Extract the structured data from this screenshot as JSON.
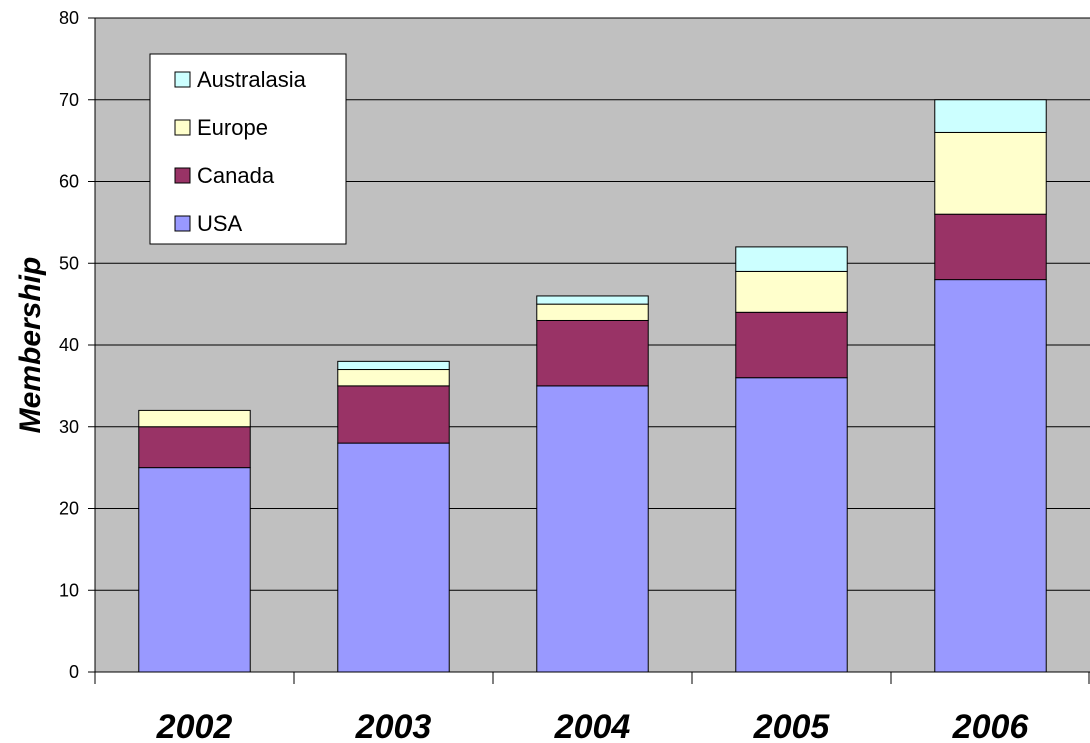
{
  "chart_data": {
    "type": "bar",
    "stacked": true,
    "categories": [
      "2002",
      "2003",
      "2004",
      "2005",
      "2006"
    ],
    "series": [
      {
        "name": "USA",
        "color": "#9999ff",
        "values": [
          25,
          28,
          35,
          36,
          48
        ]
      },
      {
        "name": "Canada",
        "color": "#993366",
        "values": [
          5,
          7,
          8,
          8,
          8
        ]
      },
      {
        "name": "Europe",
        "color": "#ffffcc",
        "values": [
          2,
          2,
          2,
          5,
          10
        ]
      },
      {
        "name": "Australasia",
        "color": "#ccffff",
        "values": [
          0,
          1,
          1,
          3,
          4
        ]
      }
    ],
    "legend_order": [
      "Australasia",
      "Europe",
      "Canada",
      "USA"
    ],
    "legend_position": "top-left",
    "ylabel": "Membership",
    "xlabel": "",
    "ylim": [
      0,
      80
    ],
    "yticks": [
      0,
      10,
      20,
      30,
      40,
      50,
      60,
      70,
      80
    ],
    "grid": true,
    "plot_background": "#c0c0c0"
  }
}
